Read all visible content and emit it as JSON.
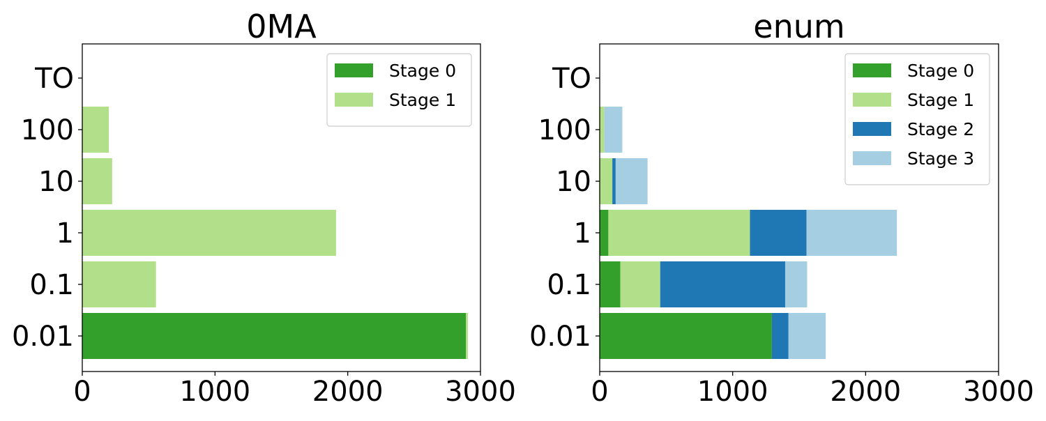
{
  "chart_data": [
    {
      "type": "bar",
      "orientation": "horizontal",
      "stacked": true,
      "title": "0MA",
      "categories": [
        "0.01",
        "0.1",
        "1",
        "10",
        "100",
        "TO"
      ],
      "series": [
        {
          "name": "Stage 0",
          "color": "#33a02c",
          "values": [
            2890,
            0,
            0,
            0,
            0,
            0
          ]
        },
        {
          "name": "Stage 1",
          "color": "#b2df8a",
          "values": [
            15,
            555,
            1912,
            225,
            200,
            0
          ]
        }
      ],
      "xlim": [
        0,
        3000
      ],
      "xticks": [
        "0",
        "1000",
        "2000",
        "3000"
      ],
      "legend_position": "top-right",
      "grid": false
    },
    {
      "type": "bar",
      "orientation": "horizontal",
      "stacked": true,
      "title": "enum",
      "categories": [
        "0.01",
        "0.1",
        "1",
        "10",
        "100",
        "TO"
      ],
      "series": [
        {
          "name": "Stage 0",
          "color": "#33a02c",
          "values": [
            1295,
            155,
            65,
            0,
            0,
            0
          ]
        },
        {
          "name": "Stage 1",
          "color": "#b2df8a",
          "values": [
            0,
            300,
            1065,
            95,
            35,
            0
          ]
        },
        {
          "name": "Stage 2",
          "color": "#1f78b4",
          "values": [
            125,
            940,
            425,
            25,
            0,
            0
          ]
        },
        {
          "name": "Stage 3",
          "color": "#a6cee3",
          "values": [
            280,
            165,
            680,
            240,
            135,
            0
          ]
        }
      ],
      "xlim": [
        0,
        3000
      ],
      "xticks": [
        "0",
        "1000",
        "2000",
        "3000"
      ],
      "legend_position": "top-right",
      "grid": false
    }
  ]
}
